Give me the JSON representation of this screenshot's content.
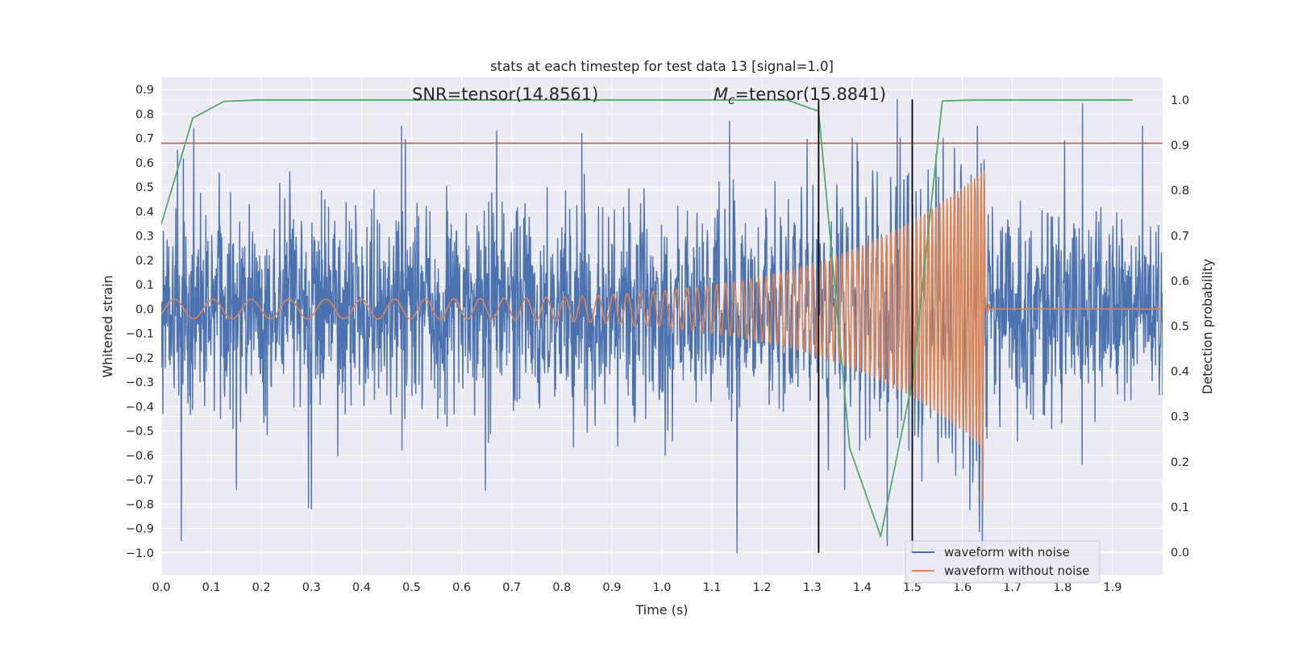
{
  "chart_data": {
    "type": "line",
    "title": "stats at each timestep for test data 13 [signal=1.0]",
    "xlabel": "Time (s)",
    "ylabel": "Whitened strain",
    "ylabel_right": "Detection probability",
    "xlim": [
      0.0,
      2.0
    ],
    "ylim": [
      -1.09,
      0.95
    ],
    "ylim_right": [
      -0.05,
      1.05
    ],
    "xticks": [
      "0.0",
      "0.1",
      "0.2",
      "0.3",
      "0.4",
      "0.5",
      "0.6",
      "0.7",
      "0.8",
      "0.9",
      "1.0",
      "1.1",
      "1.2",
      "1.3",
      "1.4",
      "1.5",
      "1.6",
      "1.7",
      "1.8",
      "1.9"
    ],
    "yticks": [
      "0.9",
      "0.8",
      "0.7",
      "0.6",
      "0.5",
      "0.4",
      "0.3",
      "0.2",
      "0.1",
      "0.0",
      "−0.1",
      "−0.2",
      "−0.3",
      "−0.4",
      "−0.5",
      "−0.6",
      "−0.7",
      "−0.8",
      "−0.9",
      "−1.0"
    ],
    "yticks_right": [
      "1.0",
      "0.9",
      "0.8",
      "0.7",
      "0.6",
      "0.5",
      "0.4",
      "0.3",
      "0.2",
      "0.1",
      "0.0"
    ],
    "grid": true,
    "legend_placement": "lower-right",
    "annotations": {
      "snr_text": "SNR=tensor(14.8561)",
      "mc_symbol": "M",
      "mc_subscript": "c",
      "mc_text": "=tensor(15.8841)"
    },
    "series": [
      {
        "name": "waveform with noise",
        "axis": "left",
        "color": "#4c72b0",
        "style": "noisy",
        "amplitude_typical": 0.45,
        "peaks": [
          {
            "x": 0.04,
            "y": -0.95
          },
          {
            "x": 0.065,
            "y": 0.74
          },
          {
            "x": 0.15,
            "y": -0.74
          },
          {
            "x": 0.3,
            "y": -0.82
          },
          {
            "x": 0.48,
            "y": 0.75
          },
          {
            "x": 0.67,
            "y": 0.73
          },
          {
            "x": 0.84,
            "y": 0.72
          },
          {
            "x": 1.15,
            "y": -1.0
          },
          {
            "x": 1.135,
            "y": 0.77
          },
          {
            "x": 1.47,
            "y": 0.86
          },
          {
            "x": 1.45,
            "y": -0.97
          },
          {
            "x": 1.63,
            "y": 0.75
          },
          {
            "x": 1.64,
            "y": -0.98
          },
          {
            "x": 1.84,
            "y": 0.84
          },
          {
            "x": 1.96,
            "y": 0.75
          }
        ]
      },
      {
        "name": "waveform without noise",
        "axis": "left",
        "color": "#dd8452",
        "style": "chirp",
        "start_x": 0.0,
        "merger_x": 1.645,
        "start_amplitude": 0.04,
        "peak_amplitude": 0.58,
        "min_at_merger": -0.78,
        "start_frequency_hz": 13,
        "end_frequency_hz": 160,
        "post_merger_value": 0.0
      },
      {
        "axis": "right",
        "color": "#55a868",
        "x": [
          0.0,
          0.063,
          0.125,
          0.19,
          0.25,
          0.5,
          0.75,
          1.0,
          1.25,
          1.313,
          1.375,
          1.437,
          1.5,
          1.56,
          1.625,
          1.94
        ],
        "y": [
          0.725,
          0.96,
          0.997,
          1.0,
          1.0,
          1.0,
          1.0,
          1.0,
          1.0,
          0.975,
          0.23,
          0.035,
          0.38,
          0.998,
          1.0,
          1.0
        ]
      },
      {
        "axis": "left",
        "color": "#c44e52",
        "style": "hline",
        "y": 0.68
      }
    ],
    "vlines": [
      {
        "x": 1.313,
        "y0": -1.0,
        "y1": 0.86,
        "color": "#000000"
      },
      {
        "x": 1.5,
        "y0": -1.0,
        "y1": 0.86,
        "color": "#000000"
      }
    ]
  }
}
